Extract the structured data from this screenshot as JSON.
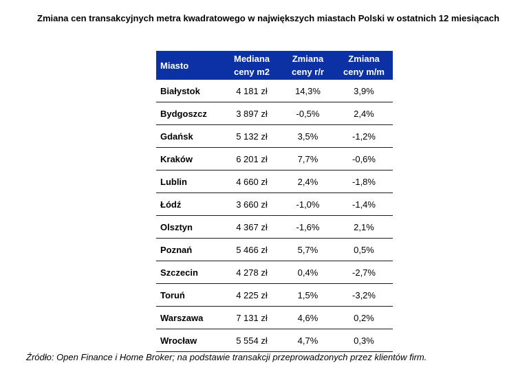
{
  "title": "Zmiana cen transakcyjnych metra kwadratowego w największych miastach Polski w ostatnich 12 miesiącach",
  "table": {
    "headers": {
      "city": "Miasto",
      "median_line1": "Mediana",
      "median_line2": "ceny m2",
      "yoy_line1": "Zmiana",
      "yoy_line2": "ceny r/r",
      "mom_line1": "Zmiana",
      "mom_line2": "ceny m/m"
    },
    "rows": [
      {
        "city": "Białystok",
        "median": "4 181 zł",
        "yoy": "14,3%",
        "mom": "3,9%"
      },
      {
        "city": "Bydgoszcz",
        "median": "3 897 zł",
        "yoy": "-0,5%",
        "mom": "2,4%"
      },
      {
        "city": "Gdańsk",
        "median": "5 132 zł",
        "yoy": "3,5%",
        "mom": "-1,2%"
      },
      {
        "city": "Kraków",
        "median": "6 201 zł",
        "yoy": "7,7%",
        "mom": "-0,6%"
      },
      {
        "city": "Lublin",
        "median": "4 660 zł",
        "yoy": "2,4%",
        "mom": "-1,8%"
      },
      {
        "city": "Łódź",
        "median": "3 660 zł",
        "yoy": "-1,0%",
        "mom": "-1,4%"
      },
      {
        "city": "Olsztyn",
        "median": "4 367 zł",
        "yoy": "-1,6%",
        "mom": "2,1%"
      },
      {
        "city": "Poznań",
        "median": "5 466 zł",
        "yoy": "5,7%",
        "mom": "0,5%"
      },
      {
        "city": "Szczecin",
        "median": "4 278 zł",
        "yoy": "0,4%",
        "mom": "-2,7%"
      },
      {
        "city": "Toruń",
        "median": "4 225 zł",
        "yoy": "1,5%",
        "mom": "-3,2%"
      },
      {
        "city": "Warszawa",
        "median": "7 131 zł",
        "yoy": "4,6%",
        "mom": "0,2%"
      },
      {
        "city": "Wrocław",
        "median": "5 554 zł",
        "yoy": "4,7%",
        "mom": "0,3%"
      }
    ]
  },
  "source": "Źródło: Open Finance i Home Broker; na podstawie transakcji przeprowadzonych  przez klientów firm.",
  "colors": {
    "header_bg": "#0b31a5",
    "header_text": "#ffffff"
  }
}
